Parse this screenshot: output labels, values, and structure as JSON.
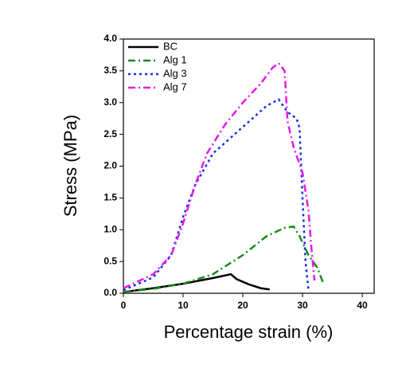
{
  "chart_data": {
    "type": "line",
    "x_label": "Percentage strain (%)",
    "y_label": "Stress (MPa)",
    "xlim": [
      0,
      42
    ],
    "ylim": [
      0,
      4
    ],
    "xticks": [
      0,
      10,
      20,
      30,
      40
    ],
    "yticks": [
      {
        "value": 0,
        "label": "0.0"
      },
      {
        "value": 0.5,
        "label": "0.5"
      },
      {
        "value": 1,
        "label": "1.0"
      },
      {
        "value": 1.5,
        "label": "1.5"
      },
      {
        "value": 2,
        "label": "2.0"
      },
      {
        "value": 2.5,
        "label": "2.5"
      },
      {
        "value": 3,
        "label": "3.0"
      },
      {
        "value": 3.5,
        "label": "3.5"
      },
      {
        "value": 4,
        "label": "4.0"
      }
    ],
    "legend": "upper left",
    "series": [
      {
        "name": "BC",
        "color": "#000000",
        "linestyle": "solid",
        "x": [
          0,
          5,
          10,
          15,
          18,
          19,
          21,
          23,
          24.5
        ],
        "values": [
          0.02,
          0.08,
          0.15,
          0.24,
          0.3,
          0.22,
          0.14,
          0.08,
          0.06
        ]
      },
      {
        "name": "Alg 1",
        "color": "#1a8a1a",
        "linestyle": "dashdot",
        "x": [
          0,
          5,
          10,
          15,
          20,
          24,
          27,
          28.5,
          29.5,
          31,
          32.5,
          33.5
        ],
        "values": [
          0.02,
          0.07,
          0.15,
          0.3,
          0.6,
          0.9,
          1.03,
          1.05,
          0.9,
          0.6,
          0.4,
          0.15
        ]
      },
      {
        "name": "Alg 3",
        "color": "#1a2ee6",
        "linestyle": "dotted",
        "x": [
          0,
          5,
          8,
          10,
          12,
          15,
          18,
          21,
          24,
          26,
          27.5,
          29,
          29.5,
          30,
          30.5,
          31
        ],
        "values": [
          0.05,
          0.25,
          0.6,
          1.2,
          1.7,
          2.2,
          2.45,
          2.7,
          2.95,
          3.05,
          2.85,
          2.75,
          2.6,
          1.5,
          0.5,
          0.05
        ]
      },
      {
        "name": "Alg 7",
        "color": "#e61ae6",
        "linestyle": "dashdot",
        "x": [
          0,
          5,
          8,
          10,
          12,
          14,
          17,
          20,
          23,
          25,
          26,
          27,
          27.5,
          28.5,
          30,
          31,
          31.5,
          32
        ],
        "values": [
          0.08,
          0.3,
          0.6,
          1.1,
          1.7,
          2.2,
          2.65,
          3.0,
          3.3,
          3.55,
          3.62,
          3.5,
          2.7,
          2.3,
          1.9,
          1.3,
          0.7,
          0.2
        ]
      }
    ]
  }
}
